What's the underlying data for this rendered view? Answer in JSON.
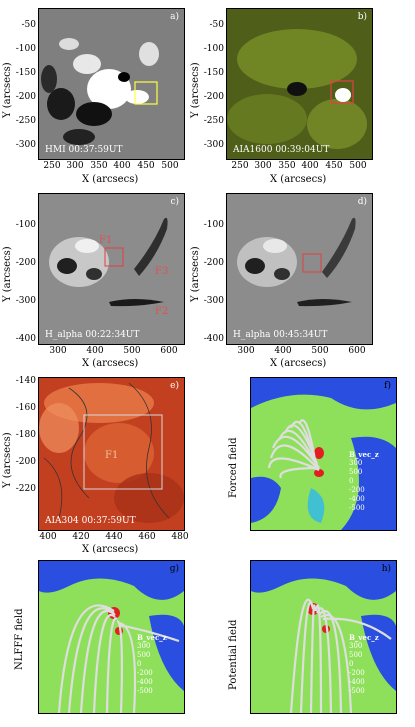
{
  "panels": {
    "a": {
      "label": "a)",
      "caption": "HMI  00:37:59UT"
    },
    "b": {
      "label": "b)",
      "caption": "AIA1600  00:39:04UT"
    },
    "c": {
      "label": "c)",
      "caption": "H_alpha  00:22:34UT",
      "features": [
        "F1",
        "F3",
        "F2"
      ]
    },
    "d": {
      "label": "d)",
      "caption": "H_alpha  00:45:34UT"
    },
    "e": {
      "label": "e)",
      "caption": "AIA304  00:37:59UT",
      "feature": "F1"
    },
    "f": {
      "label": "f)",
      "side_label": "Forced field"
    },
    "g": {
      "label": "g)",
      "side_label": "NLFFF field"
    },
    "h": {
      "label": "h)",
      "side_label": "Potential field"
    }
  },
  "legend": {
    "title": "B_vec_z",
    "values": [
      "300",
      "500",
      "0",
      "-200",
      "-400",
      "-500"
    ]
  },
  "axes": {
    "ab": {
      "xlabel": "X (arcsecs)",
      "ylabel": "Y (arcsecs)",
      "xticks": [
        "250",
        "300",
        "350",
        "400",
        "450",
        "500"
      ],
      "yticks": [
        "-50",
        "-100",
        "-150",
        "-200",
        "-250",
        "-300"
      ]
    },
    "cd": {
      "xlabel": "X (arcsecs)",
      "ylabel": "Y (arcsecs)",
      "xticks": [
        "300",
        "400",
        "500",
        "600"
      ],
      "yticks": [
        "-100",
        "-200",
        "-300",
        "-400"
      ]
    },
    "e": {
      "xlabel": "X (arcsecs)",
      "ylabel": "Y (arcsecs)",
      "xticks": [
        "400",
        "420",
        "440",
        "460",
        "480"
      ],
      "yticks": [
        "-140",
        "-160",
        "-180",
        "-200",
        "-220"
      ]
    }
  },
  "colors": {
    "magnetogram_gray": "#808080",
    "aia1600_green": "#8aa030",
    "aia304_red": "#c83a20",
    "field_blue": "#2a4ee0",
    "field_green": "#8ee05a",
    "box_red": "#e04040",
    "box_yellow": "#ffff40"
  }
}
